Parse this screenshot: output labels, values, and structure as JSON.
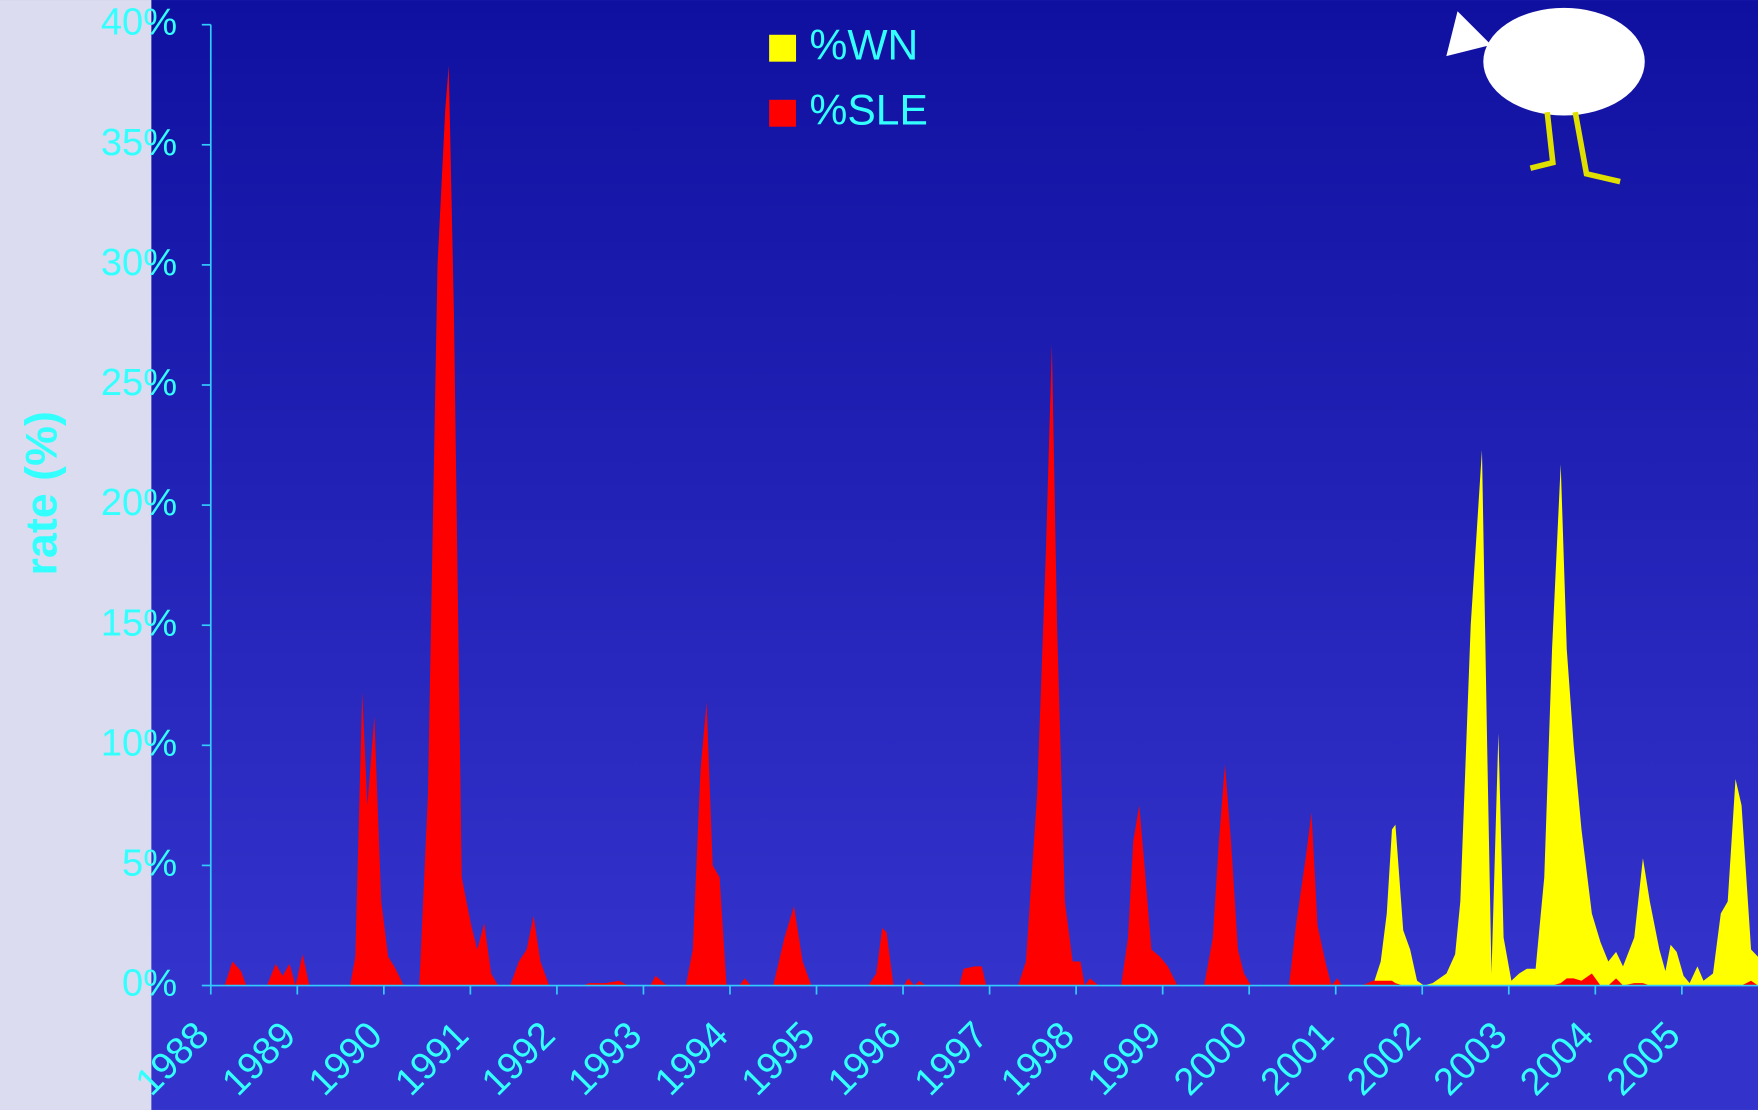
{
  "chart_data": {
    "type": "area",
    "y_label": "rate (%)",
    "legend": "top",
    "xlim": [
      1988,
      2005.88
    ],
    "xticks": [
      1988,
      1989,
      1990,
      1991,
      1992,
      1993,
      1994,
      1995,
      1996,
      1997,
      1998,
      1999,
      2000,
      2001,
      2002,
      2003,
      2004,
      2005
    ],
    "ylim": [
      0,
      40
    ],
    "yticks": [
      {
        "value": 0,
        "label": "0%"
      },
      {
        "value": 5,
        "label": "5%"
      },
      {
        "value": 10,
        "label": "10%"
      },
      {
        "value": 15,
        "label": "15%"
      },
      {
        "value": 20,
        "label": "20%"
      },
      {
        "value": 25,
        "label": "25%"
      },
      {
        "value": 30,
        "label": "30%"
      },
      {
        "value": 35,
        "label": "35%"
      },
      {
        "value": 40,
        "label": "40%"
      }
    ],
    "x": [
      1988.0,
      1988.16,
      1988.25,
      1988.35,
      1988.41,
      1988.65,
      1988.75,
      1988.83,
      1988.91,
      1988.98,
      1989.06,
      1989.14,
      1989.61,
      1989.67,
      1989.75,
      1989.81,
      1989.89,
      1989.97,
      1990.05,
      1990.12,
      1990.23,
      1990.41,
      1990.51,
      1990.62,
      1990.71,
      1990.75,
      1990.81,
      1990.9,
      1991.01,
      1991.08,
      1991.16,
      1991.24,
      1991.32,
      1991.46,
      1991.56,
      1991.65,
      1991.73,
      1991.81,
      1991.91,
      1992.3,
      1992.37,
      1992.56,
      1992.72,
      1992.82,
      1993.08,
      1993.14,
      1993.27,
      1993.49,
      1993.57,
      1993.66,
      1993.73,
      1993.8,
      1993.88,
      1993.96,
      1994.11,
      1994.17,
      1994.24,
      1994.5,
      1994.63,
      1994.74,
      1994.84,
      1994.94,
      1995.6,
      1995.69,
      1995.76,
      1995.81,
      1995.89,
      1996.01,
      1996.06,
      1996.13,
      1996.19,
      1996.26,
      1996.65,
      1996.7,
      1996.83,
      1996.91,
      1996.96,
      1997.33,
      1997.42,
      1997.55,
      1997.65,
      1997.72,
      1997.78,
      1997.87,
      1997.96,
      1998.05,
      1998.1,
      1998.16,
      1998.26,
      1998.52,
      1998.6,
      1998.66,
      1998.73,
      1998.79,
      1998.87,
      1998.97,
      1999.06,
      1999.17,
      1999.48,
      1999.58,
      1999.65,
      1999.72,
      1999.79,
      1999.87,
      1999.94,
      2000.02,
      2000.46,
      2000.54,
      2000.66,
      2000.72,
      2000.79,
      2000.88,
      2000.95,
      2001.02,
      2001.07,
      2001.3,
      2001.43,
      2001.52,
      2001.59,
      2001.65,
      2001.69,
      2001.78,
      2001.86,
      2001.94,
      2002.02,
      2002.12,
      2002.28,
      2002.38,
      2002.44,
      2002.56,
      2002.69,
      2002.75,
      2002.8,
      2002.88,
      2002.94,
      2003.03,
      2003.12,
      2003.21,
      2003.31,
      2003.41,
      2003.5,
      2003.6,
      2003.67,
      2003.75,
      2003.84,
      2003.96,
      2004.06,
      2004.15,
      2004.24,
      2004.32,
      2004.45,
      2004.55,
      2004.63,
      2004.74,
      2004.81,
      2004.87,
      2004.94,
      2005.02,
      2005.09,
      2005.18,
      2005.25,
      2005.36,
      2005.45,
      2005.53,
      2005.62,
      2005.69,
      2005.8,
      2005.88
    ],
    "series": [
      {
        "name": "%WN",
        "color": "#ffff00",
        "values": [
          0,
          0,
          0,
          0,
          0,
          0,
          0,
          0,
          0,
          0,
          0,
          0,
          0,
          0,
          0,
          0,
          0,
          0,
          0,
          0,
          0,
          0,
          0,
          0,
          0,
          0,
          0,
          0,
          0,
          0,
          0,
          0,
          0,
          0,
          0,
          0,
          0,
          0,
          0,
          0,
          0,
          0,
          0,
          0,
          0,
          0,
          0,
          0,
          0,
          0,
          0,
          0,
          0,
          0,
          0,
          0,
          0,
          0,
          0,
          0,
          0,
          0,
          0,
          0,
          0,
          0,
          0,
          0,
          0,
          0,
          0,
          0,
          0,
          0,
          0,
          0,
          0,
          0,
          0,
          0,
          0,
          0,
          0,
          0,
          0,
          0,
          0,
          0,
          0,
          0,
          0,
          0,
          0,
          0,
          0,
          0,
          0,
          0,
          0,
          0,
          0,
          0,
          0,
          0,
          0,
          0,
          0,
          0,
          0,
          0,
          0,
          0,
          0,
          0,
          0,
          0,
          0,
          1,
          3,
          6.5,
          6.7,
          2.3,
          1.5,
          0.2,
          0,
          0.1,
          0.5,
          1.3,
          3.5,
          15,
          22.3,
          10,
          0.5,
          10.5,
          2,
          0.2,
          0.5,
          0.7,
          0.7,
          4.5,
          14,
          21.7,
          14,
          10,
          6.5,
          3,
          1.8,
          1,
          1.4,
          0.8,
          2,
          5.3,
          3.5,
          1.5,
          0.6,
          1.7,
          1.4,
          0.4,
          0.1,
          0.8,
          0.2,
          0.5,
          3,
          3.5,
          8.6,
          7.5,
          1.5,
          1.2
        ]
      },
      {
        "name": "%SLE",
        "color": "#ff0000",
        "values": [
          0,
          0,
          1.0,
          0.6,
          0,
          0,
          0.9,
          0.4,
          0.9,
          0,
          1.3,
          0,
          0,
          1.2,
          12.2,
          7.5,
          11.2,
          3.5,
          1.2,
          0.8,
          0,
          0,
          8,
          30,
          36.5,
          38.3,
          28,
          4.5,
          2.5,
          1.5,
          2.6,
          0.5,
          0,
          0,
          1,
          1.5,
          2.9,
          1,
          0,
          0,
          0.1,
          0.1,
          0.2,
          0,
          0,
          0.4,
          0,
          0,
          1.5,
          9,
          11.8,
          5,
          4.5,
          0,
          0,
          0.3,
          0,
          0,
          2,
          3.3,
          1,
          0,
          0,
          0.5,
          2.4,
          2.2,
          0,
          0,
          0.3,
          0,
          0.2,
          0,
          0,
          0.7,
          0.8,
          0.8,
          0,
          0,
          1,
          8,
          18,
          26.7,
          15,
          3.5,
          1,
          1,
          0,
          0.3,
          0,
          0,
          2,
          6,
          7.5,
          5,
          1.5,
          1.2,
          0.8,
          0,
          0,
          2,
          6,
          9.2,
          6,
          1.5,
          0.5,
          0,
          0,
          2.5,
          5.5,
          7.2,
          2.5,
          1,
          0,
          0.3,
          0,
          0,
          0.2,
          0.2,
          0.2,
          0.2,
          0.1,
          0,
          0,
          0,
          0,
          0,
          0,
          0,
          0,
          0,
          0,
          0,
          0,
          0,
          0,
          0,
          0,
          0,
          0,
          0,
          0,
          0.1,
          0.3,
          0.3,
          0.2,
          0.5,
          0,
          0,
          0.3,
          0,
          0.1,
          0.1,
          0,
          0,
          0,
          0,
          0,
          0,
          0,
          0,
          0,
          0,
          0,
          0,
          0,
          0,
          0.2,
          0
        ]
      }
    ]
  }
}
